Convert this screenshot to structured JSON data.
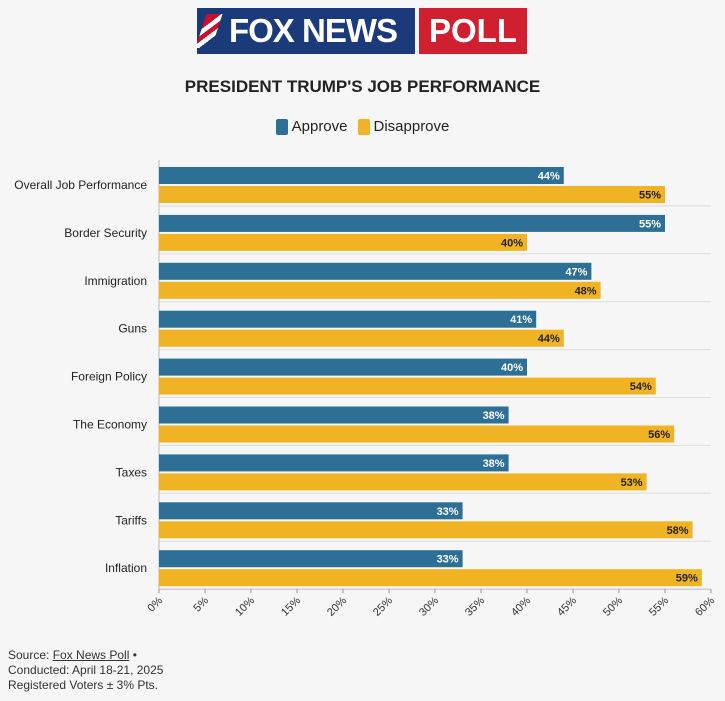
{
  "logo": {
    "brand": "FOX NEWS",
    "suffix": "POLL"
  },
  "chart_data": {
    "type": "bar",
    "orientation": "horizontal",
    "title": "PRESIDENT TRUMP'S JOB PERFORMANCE",
    "categories": [
      "Overall Job Performance",
      "Border Security",
      "Immigration",
      "Guns",
      "Foreign Policy",
      "The Economy",
      "Taxes",
      "Tariffs",
      "Inflation"
    ],
    "series": [
      {
        "name": "Approve",
        "color": "#2e6f96",
        "values": [
          44,
          55,
          47,
          41,
          40,
          38,
          38,
          33,
          33
        ]
      },
      {
        "name": "Disapprove",
        "color": "#f0b323",
        "values": [
          55,
          40,
          48,
          44,
          54,
          56,
          53,
          58,
          59
        ]
      }
    ],
    "xlim": [
      0,
      60
    ],
    "xticks": [
      0,
      5,
      10,
      15,
      20,
      25,
      30,
      35,
      40,
      45,
      50,
      55,
      60
    ],
    "tick_suffix": "%",
    "grid": true,
    "legend_position": "top-center"
  },
  "footer": {
    "source_prefix": "Source: ",
    "source_link": "Fox News Poll",
    "source_suffix": " •",
    "conducted": "Conducted: April 18-21, 2025",
    "voters": "Registered Voters ± 3% Pts."
  }
}
